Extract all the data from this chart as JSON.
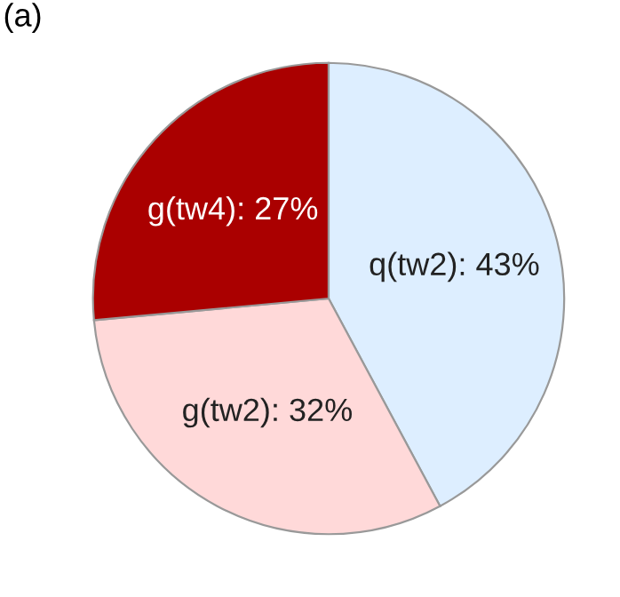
{
  "chart_data": {
    "type": "pie",
    "title": "(a)",
    "categories": [
      "q(tw2)",
      "g(tw2)",
      "g(tw4)"
    ],
    "values": [
      43,
      32,
      27
    ],
    "value_labels": [
      "43%",
      "32%",
      "27%"
    ],
    "colors": [
      "#ddeeff",
      "#ffd9d9",
      "#aa0000"
    ]
  }
}
